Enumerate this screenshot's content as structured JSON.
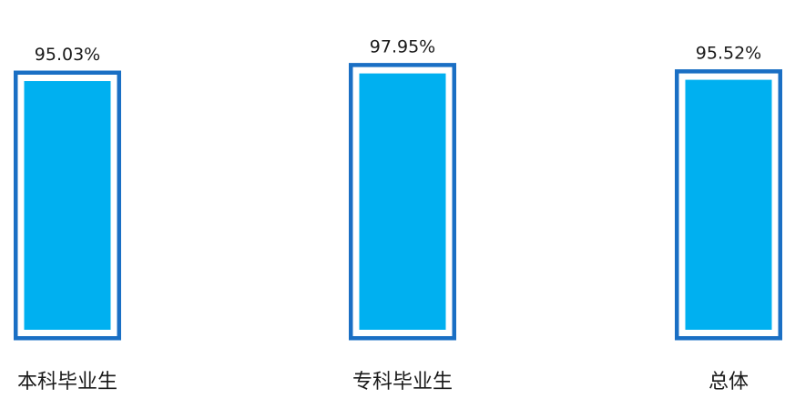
{
  "chart_data": {
    "type": "bar",
    "categories": [
      "本科毕业生",
      "专科毕业生",
      "总体"
    ],
    "values": [
      95.03,
      97.95,
      95.52
    ],
    "value_labels": [
      "95.03%",
      "97.95%",
      "95.52%"
    ],
    "unit": "%",
    "title": "",
    "xlabel": "",
    "ylabel": "",
    "legend": "none",
    "grid": false,
    "colors": {
      "bar_fill": "#00b0f0",
      "bar_border": "#1a6fc4"
    }
  }
}
